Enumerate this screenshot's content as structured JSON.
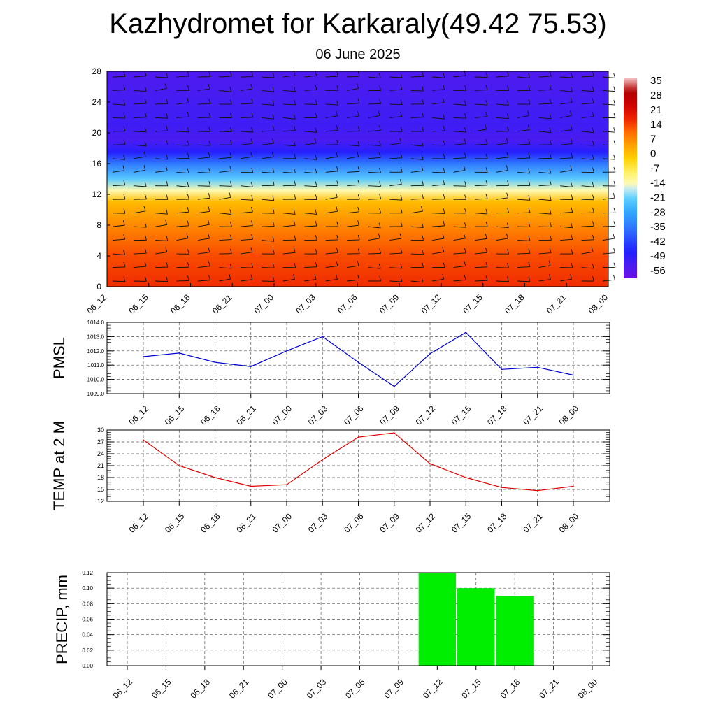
{
  "header": {
    "title": "Kazhydromet for Karkaraly(49.42 75.53)",
    "subtitle": "06 June 2025"
  },
  "colors": {
    "pmsl_line": "#0000cc",
    "temp_line": "#dd0000",
    "precip_bar": "#00ee00",
    "grid": "#666666"
  },
  "time_labels": [
    "06_12",
    "06_15",
    "06_18",
    "06_21",
    "07_00",
    "07_03",
    "07_06",
    "07_09",
    "07_12",
    "07_15",
    "07_18",
    "07_21",
    "08_00"
  ],
  "chart_data": [
    {
      "type": "heatmap",
      "name": "temperature-wind-cross-section",
      "x": [
        "06_12",
        "06_15",
        "06_18",
        "06_21",
        "07_00",
        "07_03",
        "07_06",
        "07_09",
        "07_12",
        "07_15",
        "07_18",
        "07_21",
        "08_00"
      ],
      "y_ticks": [
        "0",
        "4",
        "8",
        "12",
        "16",
        "20",
        "24",
        "28"
      ],
      "ylim": [
        0,
        28
      ],
      "colorbar": {
        "labels": [
          "35",
          "28",
          "21",
          "14",
          "7",
          "0",
          "-7",
          "-14",
          "-21",
          "-28",
          "-35",
          "-42",
          "-49",
          "-56"
        ],
        "range": [
          -63,
          42
        ]
      },
      "profile": [
        {
          "h": 0,
          "t": 20
        },
        {
          "h": 4,
          "t": 17
        },
        {
          "h": 8,
          "t": 10
        },
        {
          "h": 11,
          "t": 3
        },
        {
          "h": 12.5,
          "t": -13
        },
        {
          "h": 14,
          "t": -22
        },
        {
          "h": 16,
          "t": -36
        },
        {
          "h": 17.5,
          "t": -50
        },
        {
          "h": 19,
          "t": -56
        },
        {
          "h": 21,
          "t": -54
        },
        {
          "h": 24,
          "t": -55
        },
        {
          "h": 28,
          "t": -57
        }
      ]
    },
    {
      "type": "line",
      "name": "pmsl",
      "ylabel": "PMSL",
      "x": [
        "06_12",
        "06_15",
        "06_18",
        "06_21",
        "07_00",
        "07_03",
        "07_06",
        "07_09",
        "07_12",
        "07_15",
        "07_18",
        "07_21",
        "08_00"
      ],
      "values": [
        1011.6,
        1011.85,
        1011.2,
        1010.9,
        1012.0,
        1013.0,
        1011.2,
        1009.5,
        1011.8,
        1013.3,
        1010.7,
        1010.85,
        1010.3
      ],
      "ylim": [
        1009.0,
        1014.0
      ],
      "y_ticks": [
        "1009.0",
        "1010.0",
        "1011.0",
        "1012.0",
        "1013.0",
        "1014.0"
      ],
      "grid": true
    },
    {
      "type": "line",
      "name": "temp-2m",
      "ylabel": "TEMP at 2 M",
      "x": [
        "06_12",
        "06_15",
        "06_18",
        "06_21",
        "07_00",
        "07_03",
        "07_06",
        "07_09",
        "07_12",
        "07_15",
        "07_18",
        "07_21",
        "08_00"
      ],
      "values": [
        27.5,
        21.0,
        18.0,
        15.8,
        16.2,
        22.5,
        28.2,
        29.3,
        21.5,
        18.0,
        15.5,
        14.7,
        15.8
      ],
      "ylim": [
        12,
        30
      ],
      "y_ticks": [
        "12",
        "15",
        "18",
        "21",
        "24",
        "27",
        "30"
      ],
      "grid": true
    },
    {
      "type": "bar",
      "name": "precip",
      "ylabel": "PRECIP, mm",
      "categories": [
        "06_12",
        "06_15",
        "06_18",
        "06_21",
        "07_00",
        "07_03",
        "07_06",
        "07_09",
        "07_12",
        "07_15",
        "07_18",
        "07_21",
        "08_00"
      ],
      "values": [
        0,
        0,
        0,
        0,
        0,
        0,
        0,
        0,
        0.12,
        0.1,
        0.09,
        0,
        0
      ],
      "ylim": [
        0,
        0.12
      ],
      "y_ticks": [
        "0.00",
        "0.02",
        "0.04",
        "0.06",
        "0.08",
        "0.10",
        "0.12"
      ],
      "grid": true
    }
  ]
}
